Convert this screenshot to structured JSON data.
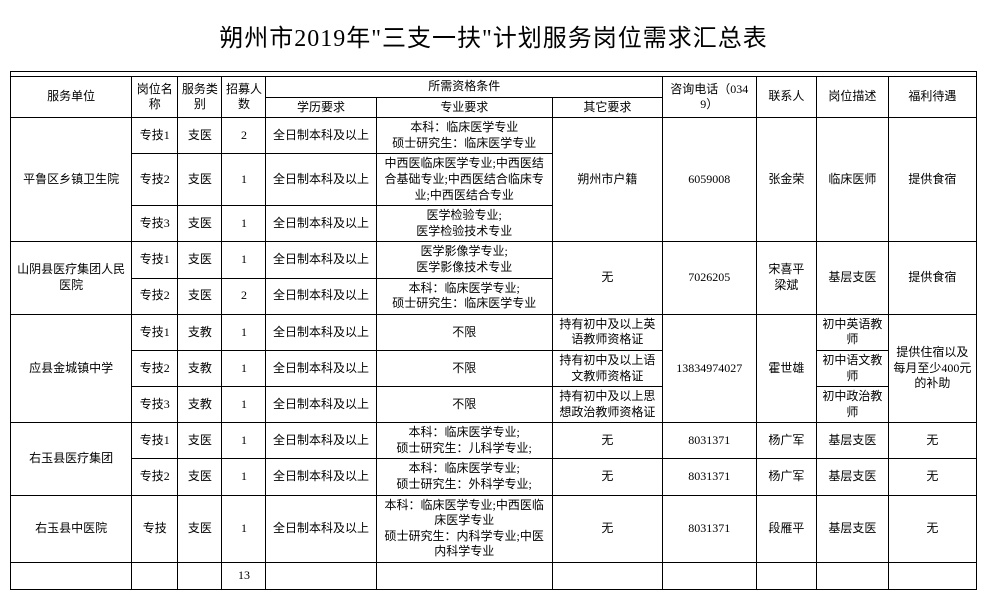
{
  "title": "朔州市2019年\"三支一扶\"计划服务岗位需求汇总表",
  "headers": {
    "unit": "服务单位",
    "position": "岗位名称",
    "category": "服务类别",
    "count": "招募人数",
    "qual_group": "所需资格条件",
    "edu": "学历要求",
    "major": "专业要求",
    "other": "其它要求",
    "tel": "咨询电话（0349）",
    "contact": "联系人",
    "desc": "岗位描述",
    "benefit": "福利待遇"
  },
  "rows": [
    {
      "unit": "平鲁区乡镇卫生院",
      "pos": "专技1",
      "cat": "支医",
      "num": "2",
      "edu": "全日制本科及以上",
      "maj": "本科：临床医学专业\n硕士研究生：临床医学专业",
      "oth": "朔州市户籍",
      "tel": "6059008",
      "con": "张金荣",
      "desc": "临床医师",
      "ben": "提供食宿",
      "unit_rs": 3,
      "oth_rs": 3,
      "tel_rs": 3,
      "con_rs": 3,
      "desc_rs": 3,
      "ben_rs": 3
    },
    {
      "pos": "专技2",
      "cat": "支医",
      "num": "1",
      "edu": "全日制本科及以上",
      "maj": "中西医临床医学专业;中西医结合基础专业;中西医结合临床专业;中西医结合专业"
    },
    {
      "pos": "专技3",
      "cat": "支医",
      "num": "1",
      "edu": "全日制本科及以上",
      "maj": "医学检验专业;\n医学检验技术专业"
    },
    {
      "unit": "山阴县医疗集团人民医院",
      "pos": "专技1",
      "cat": "支医",
      "num": "1",
      "edu": "全日制本科及以上",
      "maj": "医学影像学专业;\n医学影像技术专业",
      "oth": "无",
      "tel": "7026205",
      "con": "宋喜平\n梁斌",
      "desc": "基层支医",
      "ben": "提供食宿",
      "unit_rs": 2,
      "oth_rs": 2,
      "tel_rs": 2,
      "con_rs": 2,
      "desc_rs": 2,
      "ben_rs": 2
    },
    {
      "pos": "专技2",
      "cat": "支医",
      "num": "2",
      "edu": "全日制本科及以上",
      "maj": "本科：临床医学专业;\n硕士研究生：临床医学专业"
    },
    {
      "unit": "应县金城镇中学",
      "pos": "专技1",
      "cat": "支教",
      "num": "1",
      "edu": "全日制本科及以上",
      "maj": "不限",
      "oth": "持有初中及以上英语教师资格证",
      "tel": "13834974027",
      "con": "霍世雄",
      "desc": "初中英语教师",
      "ben": "提供住宿以及每月至少400元的补助",
      "unit_rs": 3,
      "tel_rs": 3,
      "con_rs": 3,
      "ben_rs": 3
    },
    {
      "pos": "专技2",
      "cat": "支教",
      "num": "1",
      "edu": "全日制本科及以上",
      "maj": "不限",
      "oth": "持有初中及以上语文教师资格证",
      "desc": "初中语文教师"
    },
    {
      "pos": "专技3",
      "cat": "支教",
      "num": "1",
      "edu": "全日制本科及以上",
      "maj": "不限",
      "oth": "持有初中及以上思想政治教师资格证",
      "desc": "初中政治教师"
    },
    {
      "unit": "右玉县医疗集团",
      "pos": "专技1",
      "cat": "支医",
      "num": "1",
      "edu": "全日制本科及以上",
      "maj": "本科：临床医学专业;\n硕士研究生：儿科学专业;",
      "oth": "无",
      "tel": "8031371",
      "con": "杨广军",
      "desc": "基层支医",
      "ben": "无",
      "unit_rs": 2
    },
    {
      "pos": "专技2",
      "cat": "支医",
      "num": "1",
      "edu": "全日制本科及以上",
      "maj": "本科：临床医学专业;\n硕士研究生：外科学专业;",
      "oth": "无",
      "tel": "8031371",
      "con": "杨广军",
      "desc": "基层支医",
      "ben": "无"
    },
    {
      "unit": "右玉县中医院",
      "pos": "专技",
      "cat": "支医",
      "num": "1",
      "edu": "全日制本科及以上",
      "maj": "本科：临床医学专业;中西医临床医学专业\n硕士研究生：内科学专业;中医内科学专业",
      "oth": "无",
      "tel": "8031371",
      "con": "段雁平",
      "desc": "基层支医",
      "ben": "无"
    }
  ],
  "total": "13"
}
